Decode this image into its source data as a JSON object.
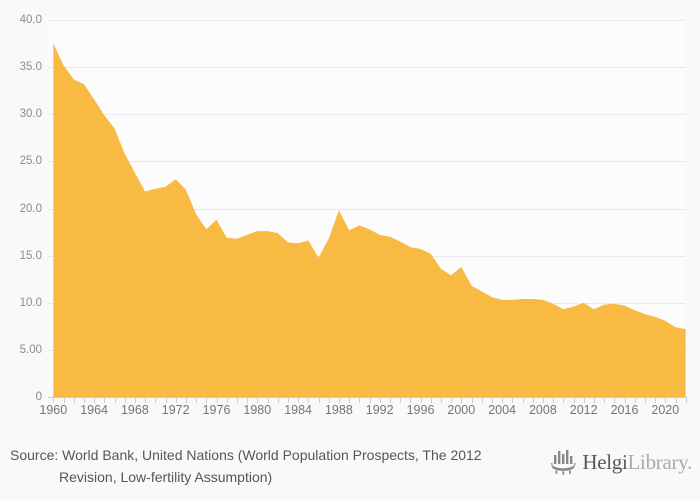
{
  "chart_data": {
    "type": "area",
    "title": "",
    "xlabel": "",
    "ylabel": "",
    "x": [
      1960,
      1961,
      1962,
      1963,
      1964,
      1965,
      1966,
      1967,
      1968,
      1969,
      1970,
      1971,
      1972,
      1973,
      1974,
      1975,
      1976,
      1977,
      1978,
      1979,
      1980,
      1981,
      1982,
      1983,
      1984,
      1985,
      1986,
      1987,
      1988,
      1989,
      1990,
      1991,
      1992,
      1993,
      1994,
      1995,
      1996,
      1997,
      1998,
      1999,
      2000,
      2001,
      2002,
      2003,
      2004,
      2005,
      2006,
      2007,
      2008,
      2009,
      2010,
      2011,
      2012,
      2013,
      2014,
      2015,
      2016,
      2017,
      2018,
      2019,
      2020,
      2021,
      2022
    ],
    "values": [
      37.5,
      35.2,
      33.7,
      33.2,
      31.6,
      29.9,
      28.5,
      25.8,
      23.8,
      21.8,
      22.1,
      22.3,
      23.1,
      22.0,
      19.4,
      17.8,
      18.8,
      16.9,
      16.8,
      17.2,
      17.6,
      17.6,
      17.4,
      16.4,
      16.3,
      16.6,
      14.8,
      16.8,
      19.8,
      17.7,
      18.2,
      17.8,
      17.2,
      17.0,
      16.5,
      15.9,
      15.7,
      15.2,
      13.6,
      12.9,
      13.8,
      11.8,
      11.2,
      10.6,
      10.3,
      10.3,
      10.4,
      10.4,
      10.3,
      9.9,
      9.3,
      9.6,
      10.0,
      9.3,
      9.8,
      9.9,
      9.7,
      9.2,
      8.8,
      8.5,
      8.1,
      7.4,
      7.2
    ],
    "ylim": [
      0,
      40
    ],
    "xlim": [
      1960,
      2022
    ],
    "ytick_values": [
      40,
      35,
      30,
      25,
      20,
      15,
      10,
      5,
      0
    ],
    "ytick_labels": [
      "40.0",
      "35.0",
      "30.0",
      "25.0",
      "20.0",
      "15.0",
      "10.0",
      "5.00",
      "0"
    ],
    "xtick_labeled_years": [
      1960,
      1964,
      1968,
      1972,
      1976,
      1980,
      1984,
      1988,
      1992,
      1996,
      2000,
      2004,
      2008,
      2012,
      2016,
      2020
    ],
    "minor_tick_every_years": 1,
    "grid": true,
    "legend_position": "none",
    "colors": {
      "area_fill": "#F8BA42",
      "axis_line": "#c3cedd",
      "gridline": "#e9eaeb",
      "background": "#f9f9f9",
      "plot_background": "#fcfcfc"
    }
  },
  "footer": {
    "line1": "Source: World Bank, United Nations (World Population Prospects, The 2012",
    "line2": "Revision, Low-fertility Assumption)"
  },
  "branding": {
    "name_primary": "Helgi",
    "name_secondary": "Library.",
    "icon": "helgi-ship-bar-chart-icon",
    "icon_color": "#85878a"
  }
}
